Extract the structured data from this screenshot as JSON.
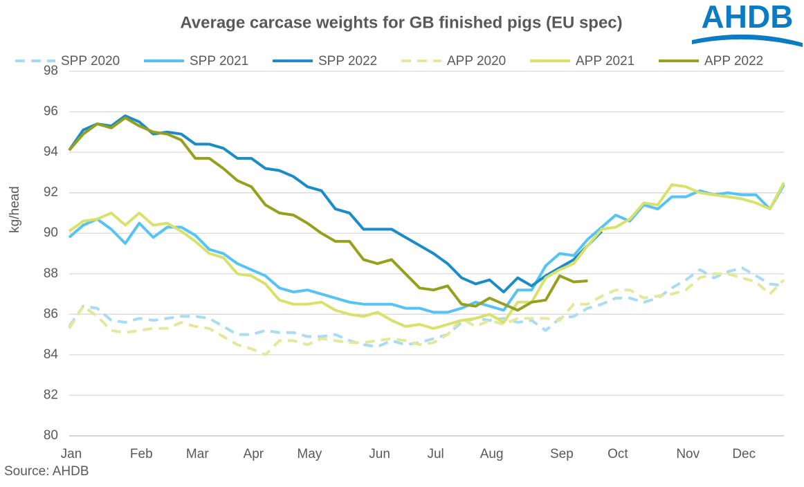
{
  "chart_data": {
    "type": "line",
    "title": "Average carcase weights for GB finished pigs (EU spec)",
    "logo": "AHDB",
    "y_label": "kg/head",
    "source": "Source: AHDB",
    "categories": [
      "Jan",
      null,
      null,
      null,
      null,
      "Feb",
      null,
      null,
      null,
      "Mar",
      null,
      null,
      null,
      "Apr",
      null,
      null,
      null,
      "May",
      null,
      null,
      null,
      null,
      "Jun",
      null,
      null,
      null,
      "Jul",
      null,
      null,
      null,
      "Aug",
      null,
      null,
      null,
      null,
      "Sep",
      null,
      null,
      null,
      "Oct",
      null,
      null,
      null,
      null,
      "Nov",
      null,
      null,
      null,
      "Dec",
      null,
      null,
      null
    ],
    "ylim": [
      80,
      98
    ],
    "yticks": [
      80,
      82,
      84,
      86,
      88,
      90,
      92,
      94,
      96,
      98
    ],
    "grid": true,
    "series": [
      {
        "name": "SPP 2020",
        "color": "#a9dcf3",
        "style": "dashed",
        "values": [
          85.4,
          86.4,
          86.3,
          85.7,
          85.6,
          85.8,
          85.7,
          85.8,
          85.9,
          85.9,
          85.8,
          85.4,
          85.0,
          85.0,
          85.2,
          85.1,
          85.1,
          84.9,
          84.9,
          85.0,
          84.7,
          84.5,
          84.4,
          84.7,
          84.5,
          84.6,
          84.8,
          85.0,
          85.6,
          85.8,
          85.7,
          85.8,
          85.6,
          85.7,
          85.2,
          85.8,
          85.9,
          86.3,
          86.5,
          86.8,
          86.8,
          86.6,
          86.8,
          87.3,
          87.7,
          88.2,
          87.8,
          88.1,
          88.3,
          87.9,
          87.5,
          87.4
        ]
      },
      {
        "name": "SPP 2021",
        "color": "#55c3f3",
        "style": "solid",
        "values": [
          89.8,
          90.4,
          90.7,
          90.2,
          89.5,
          90.5,
          89.8,
          90.3,
          90.3,
          89.9,
          89.2,
          89.0,
          88.5,
          88.2,
          87.9,
          87.3,
          87.1,
          87.2,
          87.0,
          86.8,
          86.6,
          86.5,
          86.5,
          86.5,
          86.3,
          86.3,
          86.1,
          86.1,
          86.3,
          86.6,
          86.4,
          86.2,
          87.2,
          87.2,
          88.4,
          89.0,
          88.9,
          89.7,
          90.3,
          90.9,
          90.6,
          91.4,
          91.2,
          91.8,
          91.8,
          92.1,
          91.9,
          92.0,
          91.9,
          91.9,
          91.2,
          92.4
        ]
      },
      {
        "name": "SPP 2022",
        "color": "#1a8cc8",
        "style": "solid",
        "values": [
          94.1,
          95.1,
          95.4,
          95.3,
          95.8,
          95.5,
          94.9,
          95.0,
          94.9,
          94.4,
          94.4,
          94.2,
          93.7,
          93.7,
          93.2,
          93.1,
          92.8,
          92.3,
          92.1,
          91.2,
          91.0,
          90.2,
          90.2,
          90.2,
          89.8,
          89.4,
          89.0,
          88.5,
          87.8,
          87.5,
          87.7,
          87.1,
          87.8,
          87.4,
          87.9,
          88.3,
          88.7,
          89.4,
          90.1,
          null,
          null,
          null,
          null,
          null,
          null,
          null,
          null,
          null,
          null,
          null,
          null,
          null
        ]
      },
      {
        "name": "APP 2020",
        "color": "#e3e89a",
        "style": "dashed",
        "values": [
          85.3,
          86.4,
          85.9,
          85.2,
          85.1,
          85.2,
          85.3,
          85.3,
          85.6,
          85.4,
          85.3,
          84.9,
          84.5,
          84.3,
          84.0,
          84.7,
          84.7,
          84.5,
          84.8,
          84.7,
          84.6,
          84.6,
          84.7,
          84.8,
          84.7,
          84.5,
          84.6,
          85.0,
          85.8,
          85.4,
          85.7,
          85.5,
          85.8,
          85.8,
          85.8,
          85.7,
          86.5,
          86.5,
          86.9,
          87.2,
          87.2,
          86.8,
          86.9,
          87.0,
          87.2,
          87.8,
          88.0,
          88.0,
          87.8,
          87.6,
          87.0,
          87.7
        ]
      },
      {
        "name": "APP 2021",
        "color": "#d8e26a",
        "style": "solid",
        "values": [
          90.1,
          90.6,
          90.7,
          91.0,
          90.4,
          91.0,
          90.4,
          90.5,
          90.1,
          89.6,
          89.0,
          88.8,
          88.0,
          87.9,
          87.5,
          86.7,
          86.5,
          86.5,
          86.6,
          86.2,
          86.0,
          85.9,
          86.1,
          85.7,
          85.4,
          85.5,
          85.3,
          85.5,
          85.7,
          85.8,
          86.0,
          85.6,
          86.6,
          86.6,
          87.8,
          88.2,
          88.5,
          89.4,
          90.2,
          90.3,
          90.7,
          91.5,
          91.4,
          92.4,
          92.3,
          92.0,
          91.9,
          91.8,
          91.7,
          91.5,
          91.2,
          92.5
        ]
      },
      {
        "name": "APP 2022",
        "color": "#95a01c",
        "style": "solid",
        "values": [
          94.1,
          94.9,
          95.4,
          95.2,
          95.7,
          95.3,
          95.0,
          94.9,
          94.6,
          93.7,
          93.7,
          93.2,
          92.6,
          92.3,
          91.4,
          91.0,
          90.9,
          90.5,
          90.0,
          89.6,
          89.6,
          88.7,
          88.5,
          88.7,
          88.0,
          87.3,
          87.2,
          87.4,
          86.5,
          86.4,
          86.8,
          86.5,
          86.2,
          86.6,
          86.7,
          87.9,
          87.6,
          87.65,
          null,
          null,
          null,
          null,
          null,
          null,
          null,
          null,
          null,
          null,
          null,
          null,
          null,
          null
        ]
      }
    ]
  }
}
